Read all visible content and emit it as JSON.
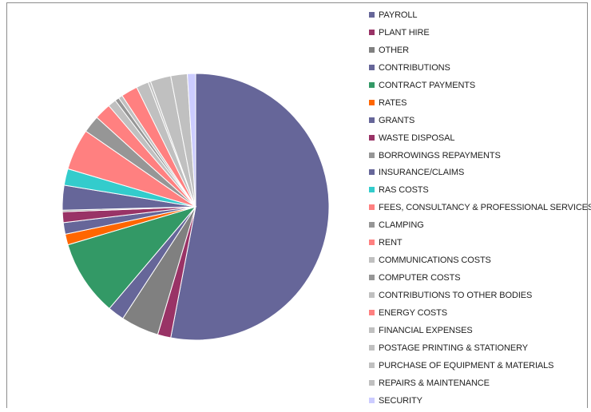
{
  "chart_data": {
    "type": "pie",
    "title": "",
    "legend_position": "right",
    "start": "top",
    "direction": "clockwise",
    "slices": [
      {
        "label": "PAYROLL",
        "value": 53.0,
        "color": "#666699"
      },
      {
        "label": "PLANT HIRE",
        "value": 1.6,
        "color": "#993366"
      },
      {
        "label": "OTHER",
        "value": 4.6,
        "color": "#808080"
      },
      {
        "label": "CONTRIBUTIONS",
        "value": 2.0,
        "color": "#666699"
      },
      {
        "label": "CONTRACT PAYMENTS",
        "value": 9.2,
        "color": "#339966"
      },
      {
        "label": "RATES",
        "value": 1.3,
        "color": "#ff6600"
      },
      {
        "label": "GRANTS",
        "value": 1.4,
        "color": "#666699"
      },
      {
        "label": "WASTE DISPOSAL",
        "value": 1.3,
        "color": "#993366"
      },
      {
        "label": "BORROWINGS REPAYMENTS",
        "value": 0.2,
        "color": "#969696"
      },
      {
        "label": "INSURANCE/CLAIMS",
        "value": 3.0,
        "color": "#666699"
      },
      {
        "label": "RAS COSTS",
        "value": 2.0,
        "color": "#33cccc"
      },
      {
        "label": "FEES, CONSULTANCY & PROFESSIONAL SERVICES",
        "value": 5.0,
        "color": "#ff8080"
      },
      {
        "label": "CLAMPING",
        "value": 2.1,
        "color": "#969696"
      },
      {
        "label": "RENT",
        "value": 2.0,
        "color": "#ff8080"
      },
      {
        "label": "COMMUNICATIONS COSTS",
        "value": 1.0,
        "color": "#c0c0c0"
      },
      {
        "label": "COMPUTER COSTS",
        "value": 0.5,
        "color": "#969696"
      },
      {
        "label": "CONTRIBUTIONS TO OTHER BODIES",
        "value": 0.5,
        "color": "#c0c0c0"
      },
      {
        "label": "ENERGY COSTS",
        "value": 2.0,
        "color": "#ff8080"
      },
      {
        "label": "FINANCIAL EXPENSES",
        "value": 1.5,
        "color": "#c0c0c0"
      },
      {
        "label": "POSTAGE PRINTING & STATIONERY",
        "value": 0.3,
        "color": "#c0c0c0"
      },
      {
        "label": "PURCHASE OF EQUIPMENT & MATERIALS",
        "value": 2.5,
        "color": "#c0c0c0"
      },
      {
        "label": "REPAIRS & MAINTENANCE",
        "value": 2.0,
        "color": "#c0c0c0"
      },
      {
        "label": "SECURITY",
        "value": 1.0,
        "color": "#ccccff"
      }
    ]
  }
}
